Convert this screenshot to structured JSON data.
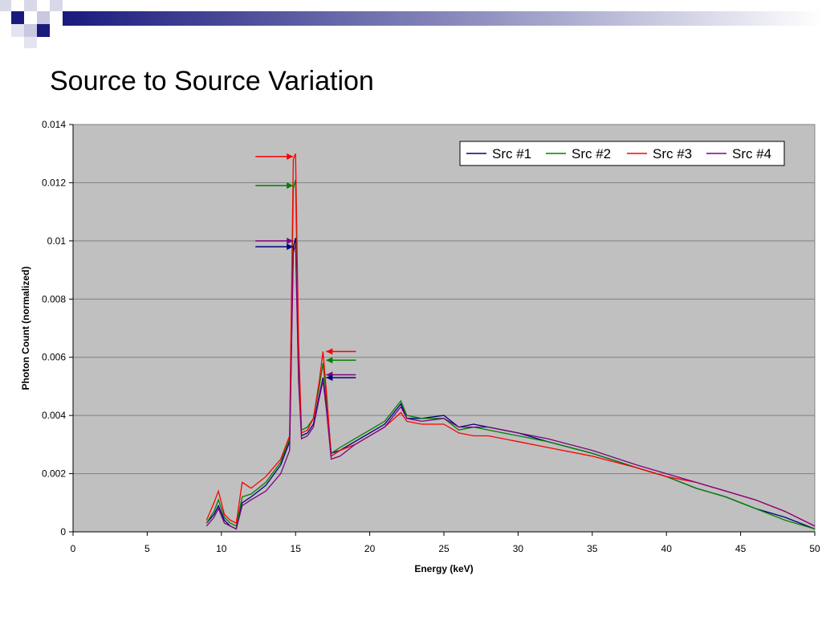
{
  "slide": {
    "title": "Source to Source Variation"
  },
  "colors": {
    "decoration_dark": "#1a1a7e",
    "decoration_light": "#c8c8e0",
    "plot_background": "#c0c0c0"
  },
  "chart_data": {
    "type": "line",
    "title": "",
    "xlabel": "Energy (keV)",
    "ylabel": "Photon Count (normalized)",
    "xlim": [
      0,
      50
    ],
    "ylim": [
      0,
      0.014
    ],
    "xticks": [
      "0",
      "5",
      "10",
      "15",
      "20",
      "25",
      "30",
      "35",
      "40",
      "45",
      "50"
    ],
    "yticks": [
      "0",
      "0.002",
      "0.004",
      "0.006",
      "0.008",
      "0.01",
      "0.012",
      "0.014"
    ],
    "grid": "horizontal",
    "legend": {
      "position": "top-right",
      "entries": [
        "Src #1",
        "Src #2",
        "Src #3",
        "Src #4"
      ]
    },
    "series": [
      {
        "name": "Src #1",
        "color": "#000080",
        "x": [
          9,
          9.5,
          9.8,
          10.2,
          10.6,
          11,
          11.4,
          12,
          13,
          14,
          14.6,
          14.85,
          15,
          15.2,
          15.4,
          15.8,
          16.2,
          16.6,
          16.85,
          17.1,
          17.4,
          18,
          19,
          20,
          21,
          22.1,
          22.5,
          23.5,
          25,
          26,
          27,
          28,
          30,
          32,
          35,
          38,
          40,
          42,
          44,
          46,
          48,
          50
        ],
        "y": [
          0.0003,
          0.0006,
          0.0009,
          0.0004,
          0.0002,
          0.0001,
          0.001,
          0.0012,
          0.0016,
          0.0023,
          0.0031,
          0.0098,
          0.0101,
          0.0055,
          0.0033,
          0.0034,
          0.0037,
          0.0047,
          0.0053,
          0.0042,
          0.0027,
          0.0028,
          0.0031,
          0.0034,
          0.0037,
          0.0044,
          0.0039,
          0.0039,
          0.004,
          0.0036,
          0.0037,
          0.0036,
          0.0034,
          0.0031,
          0.0027,
          0.0022,
          0.0019,
          0.0015,
          0.0012,
          0.0008,
          0.0005,
          0.0001
        ]
      },
      {
        "name": "Src #2",
        "color": "#008000",
        "x": [
          9,
          9.5,
          9.8,
          10.2,
          10.6,
          11,
          11.4,
          12,
          13,
          14,
          14.6,
          14.85,
          15,
          15.2,
          15.4,
          15.8,
          16.2,
          16.6,
          16.85,
          17.1,
          17.4,
          18,
          19,
          20,
          21,
          22.1,
          22.5,
          23.5,
          25,
          26,
          27,
          28,
          30,
          32,
          35,
          38,
          40,
          42,
          44,
          46,
          48,
          50
        ],
        "y": [
          0.0003,
          0.0007,
          0.0011,
          0.0005,
          0.0003,
          0.0002,
          0.0012,
          0.0013,
          0.0017,
          0.0024,
          0.0032,
          0.0118,
          0.0121,
          0.0062,
          0.0035,
          0.0036,
          0.0039,
          0.005,
          0.0058,
          0.0045,
          0.0027,
          0.0029,
          0.0032,
          0.0035,
          0.0038,
          0.0045,
          0.004,
          0.0039,
          0.0039,
          0.0035,
          0.0036,
          0.0035,
          0.0033,
          0.0031,
          0.0027,
          0.0022,
          0.0019,
          0.0015,
          0.0012,
          0.0008,
          0.0004,
          0.0001
        ]
      },
      {
        "name": "Src #3",
        "color": "#ff0000",
        "x": [
          9,
          9.5,
          9.8,
          10.2,
          10.6,
          11,
          11.4,
          12,
          13,
          14,
          14.6,
          14.85,
          15,
          15.2,
          15.4,
          15.8,
          16.2,
          16.6,
          16.85,
          17.1,
          17.4,
          18,
          19,
          20,
          21,
          22.1,
          22.5,
          23.5,
          25,
          26,
          27,
          28,
          30,
          32,
          35,
          38,
          40,
          42,
          44,
          46,
          48,
          50
        ],
        "y": [
          0.0004,
          0.001,
          0.0014,
          0.0006,
          0.0004,
          0.0003,
          0.0017,
          0.0015,
          0.0019,
          0.0025,
          0.0033,
          0.0128,
          0.013,
          0.0066,
          0.0034,
          0.0035,
          0.0039,
          0.0052,
          0.0062,
          0.0047,
          0.0026,
          0.0028,
          0.003,
          0.0033,
          0.0036,
          0.0041,
          0.0038,
          0.0037,
          0.0037,
          0.0034,
          0.0033,
          0.0033,
          0.0031,
          0.0029,
          0.0026,
          0.0022,
          0.0019,
          0.0017,
          0.0014,
          0.0011,
          0.0007,
          0.0002
        ]
      },
      {
        "name": "Src #4",
        "color": "#800080",
        "x": [
          9,
          9.5,
          9.8,
          10.2,
          10.6,
          11,
          11.4,
          12,
          13,
          14,
          14.6,
          14.85,
          15,
          15.2,
          15.4,
          15.8,
          16.2,
          16.6,
          16.85,
          17.1,
          17.4,
          18,
          19,
          20,
          21,
          22.1,
          22.5,
          23.5,
          25,
          26,
          27,
          28,
          30,
          32,
          35,
          38,
          40,
          42,
          44,
          46,
          48,
          50
        ],
        "y": [
          0.0002,
          0.0005,
          0.0008,
          0.0003,
          0.0002,
          0.0001,
          0.0009,
          0.0011,
          0.0014,
          0.002,
          0.0028,
          0.0096,
          0.0099,
          0.0052,
          0.0032,
          0.0033,
          0.0036,
          0.0046,
          0.0052,
          0.0041,
          0.0025,
          0.0026,
          0.003,
          0.0033,
          0.0036,
          0.0043,
          0.0039,
          0.0038,
          0.0039,
          0.0036,
          0.0036,
          0.0036,
          0.0034,
          0.0032,
          0.0028,
          0.0023,
          0.002,
          0.0017,
          0.0014,
          0.0011,
          0.0007,
          0.0002
        ]
      }
    ],
    "annotations": [
      {
        "type": "arrow",
        "color": "#ff0000",
        "points_to_x": 15,
        "y": 0.0129,
        "direction": "right"
      },
      {
        "type": "arrow",
        "color": "#008000",
        "points_to_x": 15,
        "y": 0.0119,
        "direction": "right"
      },
      {
        "type": "arrow",
        "color": "#800080",
        "points_to_x": 15,
        "y": 0.01,
        "direction": "right"
      },
      {
        "type": "arrow",
        "color": "#000080",
        "points_to_x": 15,
        "y": 0.0098,
        "direction": "right"
      },
      {
        "type": "arrow",
        "color": "#ff0000",
        "points_to_x": 16.9,
        "y": 0.0062,
        "direction": "left"
      },
      {
        "type": "arrow",
        "color": "#008000",
        "points_to_x": 16.9,
        "y": 0.0059,
        "direction": "left"
      },
      {
        "type": "arrow",
        "color": "#800080",
        "points_to_x": 16.9,
        "y": 0.0054,
        "direction": "left"
      },
      {
        "type": "arrow",
        "color": "#000080",
        "points_to_x": 16.9,
        "y": 0.0053,
        "direction": "left"
      }
    ]
  }
}
